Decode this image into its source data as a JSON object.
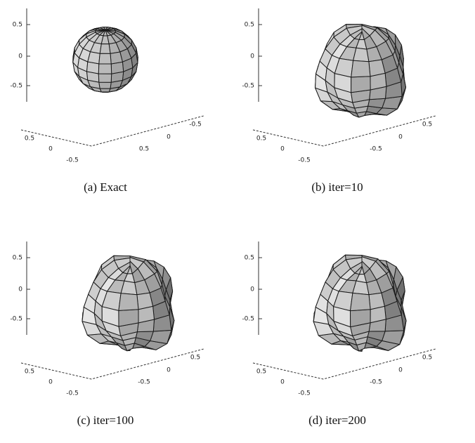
{
  "panels": [
    {
      "caption": "(a) Exact",
      "z_ticks": [
        "0.5",
        "0",
        "-0.5"
      ],
      "x_ticks": [
        "0.5",
        "0",
        "-0.5"
      ],
      "y_ticks": [
        "0.5",
        "0",
        "-0.5"
      ]
    },
    {
      "caption": "(b) iter=10",
      "z_ticks": [
        "0.5",
        "0",
        "-0.5"
      ],
      "x_ticks": [
        "0.5",
        "0",
        "-0.5"
      ],
      "y_ticks": [
        "-0.5",
        "0",
        "0.5"
      ]
    },
    {
      "caption": "(c) iter=100",
      "z_ticks": [
        "0.5",
        "0",
        "-0.5"
      ],
      "x_ticks": [
        "0.5",
        "0",
        "-0.5"
      ],
      "y_ticks": [
        "-0.5",
        "0",
        "0.5"
      ]
    },
    {
      "caption": "(d) iter=200",
      "z_ticks": [
        "0.5",
        "0",
        "-0.5"
      ],
      "x_ticks": [
        "0.5",
        "0",
        "-0.5"
      ],
      "y_ticks": [
        "-0.5",
        "0",
        "0.5"
      ]
    }
  ]
}
